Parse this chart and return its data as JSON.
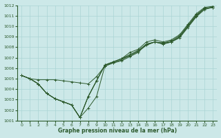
{
  "xlabel": "Graphe pression niveau de la mer (hPa)",
  "xlim": [
    -0.5,
    23.5
  ],
  "ylim": [
    1001,
    1012
  ],
  "yticks": [
    1001,
    1002,
    1003,
    1004,
    1005,
    1006,
    1007,
    1008,
    1009,
    1010,
    1011,
    1012
  ],
  "xticks": [
    0,
    1,
    2,
    3,
    4,
    5,
    6,
    7,
    8,
    9,
    10,
    11,
    12,
    13,
    14,
    15,
    16,
    17,
    18,
    19,
    20,
    21,
    22,
    23
  ],
  "bg_color": "#cce8e8",
  "grid_color": "#aad4d4",
  "line_color": "#2d5a2d",
  "series": [
    [
      1005.3,
      1005.0,
      1004.5,
      1003.6,
      1003.1,
      1002.8,
      1002.5,
      1001.3,
      1002.2,
      1003.3,
      1006.2,
      1006.5,
      1006.7,
      1007.1,
      1007.5,
      1008.3,
      1008.5,
      1008.3,
      1008.5,
      1009.0,
      1010.0,
      1011.0,
      1011.7,
      1011.8
    ],
    [
      1005.3,
      1005.0,
      1004.5,
      1003.6,
      1003.1,
      1002.8,
      1002.5,
      1001.3,
      1003.3,
      1004.8,
      1006.3,
      1006.6,
      1006.9,
      1007.2,
      1007.6,
      1008.2,
      1008.5,
      1008.3,
      1008.5,
      1009.0,
      1010.0,
      1011.0,
      1011.7,
      1011.8
    ],
    [
      1005.3,
      1005.0,
      1004.5,
      1003.6,
      1003.1,
      1002.8,
      1002.5,
      1001.3,
      1003.3,
      1004.8,
      1006.3,
      1006.6,
      1006.9,
      1007.3,
      1007.7,
      1008.3,
      1008.5,
      1008.4,
      1008.6,
      1009.1,
      1010.1,
      1011.1,
      1011.7,
      1011.8
    ],
    [
      1005.3,
      1005.0,
      1004.9,
      1004.9,
      1004.9,
      1004.8,
      1004.7,
      1004.6,
      1004.5,
      1005.2,
      1006.2,
      1006.5,
      1006.8,
      1007.2,
      1007.6,
      1008.2,
      1008.5,
      1008.4,
      1008.5,
      1008.9,
      1009.9,
      1010.9,
      1011.6,
      1011.8
    ],
    [
      1005.3,
      1005.0,
      1004.5,
      1003.6,
      1003.1,
      1002.8,
      1002.5,
      1001.3,
      1003.3,
      1004.8,
      1006.3,
      1006.6,
      1006.9,
      1007.5,
      1007.8,
      1008.5,
      1008.7,
      1008.5,
      1008.7,
      1009.2,
      1010.2,
      1011.2,
      1011.8,
      1011.9
    ]
  ]
}
